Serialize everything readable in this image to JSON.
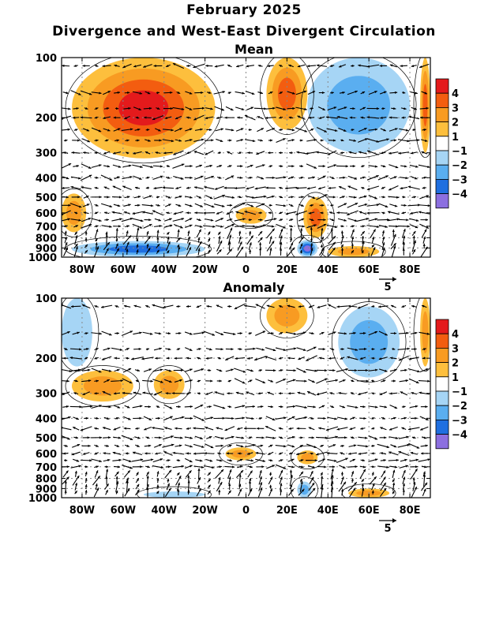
{
  "header": {
    "title": "February 2025",
    "subtitle": "Divergence and West-East Divergent Circulation"
  },
  "colors": {
    "levels": [
      {
        "label": "4",
        "color": "#e41a1c"
      },
      {
        "label": "3",
        "color": "#f35d10"
      },
      {
        "label": "2",
        "color": "#f89b22"
      },
      {
        "label": "1",
        "color": "#fdbf3d"
      },
      {
        "label": "",
        "color": "#ffffff"
      },
      {
        "label": "−1",
        "color": "#a6d5f5"
      },
      {
        "label": "−2",
        "color": "#5aaef0"
      },
      {
        "label": "−3",
        "color": "#1f6fe0"
      },
      {
        "label": "−4",
        "color": "#8c6fe0"
      }
    ],
    "colorbar_ticks": [
      "4",
      "3",
      "2",
      "1",
      "−1",
      "−2",
      "−3",
      "−4"
    ]
  },
  "chart_data": [
    {
      "type": "heatmap",
      "title": "Mean",
      "x_ticks": [
        "80W",
        "60W",
        "40W",
        "20W",
        "0",
        "20E",
        "40E",
        "60E",
        "80E"
      ],
      "x_tick_values": [
        -80,
        -60,
        -40,
        -20,
        0,
        20,
        40,
        60,
        80
      ],
      "xlim": [
        -90,
        90
      ],
      "y_ticks": [
        "100",
        "200",
        "300",
        "400",
        "500",
        "600",
        "700",
        "800",
        "900",
        "1000"
      ],
      "y_tick_values": [
        100,
        200,
        300,
        400,
        500,
        600,
        700,
        800,
        900,
        1000
      ],
      "ylim": [
        1000,
        100
      ],
      "y_scale": "log",
      "vector_reference": "5",
      "features": [
        {
          "lon": [
            -85,
            -15
          ],
          "p": [
            100,
            320
          ],
          "level": 4
        },
        {
          "lon": [
            10,
            30
          ],
          "p": [
            100,
            230
          ],
          "level": 3
        },
        {
          "lon": [
            30,
            80
          ],
          "p": [
            100,
            300
          ],
          "level": -2
        },
        {
          "lon": [
            -90,
            -78
          ],
          "p": [
            480,
            750
          ],
          "level": 2
        },
        {
          "lon": [
            -85,
            -20
          ],
          "p": [
            830,
            1000
          ],
          "level": -3
        },
        {
          "lon": [
            -5,
            10
          ],
          "p": [
            560,
            680
          ],
          "level": 2
        },
        {
          "lon": [
            28,
            40
          ],
          "p": [
            500,
            800
          ],
          "level": 3
        },
        {
          "lon": [
            25,
            35
          ],
          "p": [
            820,
            1000
          ],
          "level": -4
        },
        {
          "lon": [
            40,
            65
          ],
          "p": [
            880,
            1000
          ],
          "level": 2
        },
        {
          "lon": [
            85,
            90
          ],
          "p": [
            100,
            300
          ],
          "level": 3
        }
      ]
    },
    {
      "type": "heatmap",
      "title": "Anomaly",
      "x_ticks": [
        "80W",
        "60W",
        "40W",
        "20W",
        "0",
        "20E",
        "40E",
        "60E",
        "80E"
      ],
      "x_tick_values": [
        -80,
        -60,
        -40,
        -20,
        0,
        20,
        40,
        60,
        80
      ],
      "xlim": [
        -90,
        90
      ],
      "y_ticks": [
        "100",
        "200",
        "300",
        "400",
        "500",
        "600",
        "700",
        "800",
        "900",
        "1000"
      ],
      "y_tick_values": [
        100,
        200,
        300,
        400,
        500,
        600,
        700,
        800,
        900,
        1000
      ],
      "ylim": [
        1000,
        100
      ],
      "y_scale": "log",
      "vector_reference": "5",
      "features": [
        {
          "lon": [
            -90,
            -75
          ],
          "p": [
            100,
            220
          ],
          "level": -1
        },
        {
          "lon": [
            10,
            30
          ],
          "p": [
            100,
            150
          ],
          "level": 2
        },
        {
          "lon": [
            45,
            75
          ],
          "p": [
            110,
            250
          ],
          "level": -2
        },
        {
          "lon": [
            -85,
            -55
          ],
          "p": [
            230,
            330
          ],
          "level": 2
        },
        {
          "lon": [
            -45,
            -30
          ],
          "p": [
            230,
            320
          ],
          "level": 2
        },
        {
          "lon": [
            -10,
            5
          ],
          "p": [
            560,
            650
          ],
          "level": 2
        },
        {
          "lon": [
            25,
            35
          ],
          "p": [
            580,
            680
          ],
          "level": 2
        },
        {
          "lon": [
            25,
            32
          ],
          "p": [
            830,
            1000
          ],
          "level": -2
        },
        {
          "lon": [
            50,
            70
          ],
          "p": [
            900,
            1000
          ],
          "level": 2
        },
        {
          "lon": [
            -50,
            -20
          ],
          "p": [
            930,
            1000
          ],
          "level": -1
        },
        {
          "lon": [
            85,
            90
          ],
          "p": [
            100,
            220
          ],
          "level": 2
        }
      ]
    }
  ]
}
